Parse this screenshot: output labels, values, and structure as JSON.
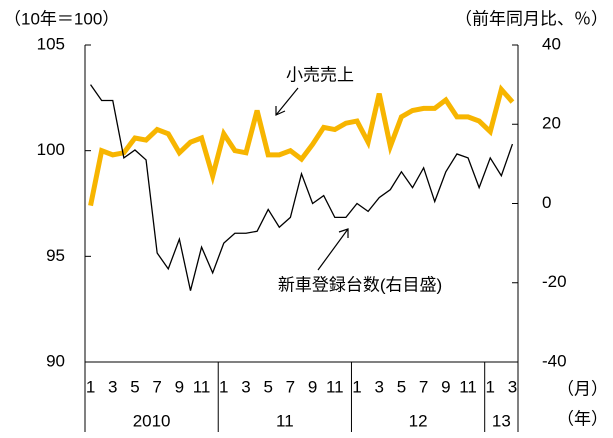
{
  "chart_data": {
    "type": "line",
    "left_unit": "（10年＝100）",
    "right_unit": "（前年同月比、％）",
    "x_unit_month": "（月）",
    "x_unit_year": "（年）",
    "categories": [
      "1",
      null,
      "3",
      null,
      "5",
      null,
      "7",
      null,
      "9",
      null,
      "11",
      null,
      "1",
      null,
      "3",
      null,
      "5",
      null,
      "7",
      null,
      "9",
      null,
      "11",
      null,
      "1",
      null,
      "3",
      null,
      "5",
      null,
      "7",
      null,
      "9",
      null,
      "11",
      null,
      "1",
      null,
      "3"
    ],
    "years": [
      "2010",
      "11",
      "12",
      "13"
    ],
    "series": [
      {
        "name": "小売売上",
        "color": "#f7b500",
        "axis": "y",
        "values": [
          97.4,
          100.0,
          99.8,
          99.9,
          100.6,
          100.5,
          101.0,
          100.8,
          99.9,
          100.4,
          100.6,
          98.8,
          100.8,
          100.0,
          99.9,
          101.9,
          99.8,
          99.8,
          100.0,
          99.6,
          100.3,
          101.1,
          101.0,
          101.3,
          101.4,
          100.4,
          102.7,
          100.2,
          101.6,
          101.9,
          102.0,
          102.0,
          102.4,
          101.6,
          101.6,
          101.4,
          100.9,
          102.9,
          102.3
        ]
      },
      {
        "name": "新車登録台数(右目盛)",
        "color": "#000000",
        "axis": "y2",
        "values": [
          30,
          26,
          26,
          11.5,
          13.5,
          11,
          -12.5,
          -16.5,
          -9,
          -22,
          -11,
          -17.5,
          -10,
          -7.5,
          -7.5,
          -7,
          -1.5,
          -6,
          -3.5,
          7.5,
          0,
          2,
          -3.5,
          -3.5,
          0,
          -2,
          1.5,
          3.5,
          8,
          4,
          9,
          0.5,
          8,
          12.5,
          11.5,
          4,
          11.5,
          7,
          15
        ]
      }
    ],
    "ylim": [
      90,
      105
    ],
    "yticks": [
      90,
      95,
      100,
      105
    ],
    "y2lim": [
      -40,
      40
    ],
    "y2ticks": [
      -40,
      -20,
      0,
      20,
      40
    ]
  }
}
